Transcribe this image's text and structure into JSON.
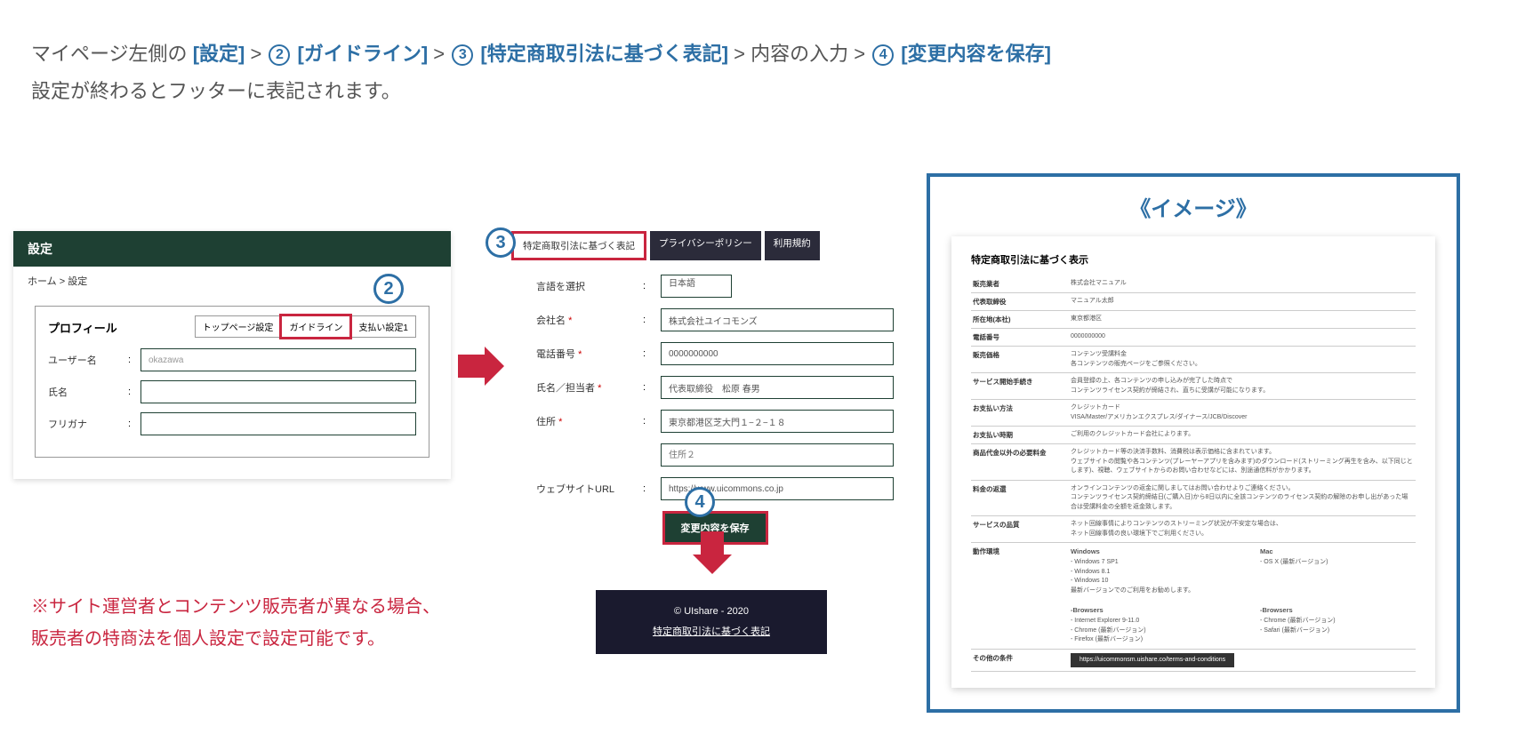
{
  "instruction": {
    "prefix": "マイページ左側の ",
    "step1": "[設定]",
    "gt1": " > ",
    "num2": "②",
    "step2": " [ガイドライン]",
    "gt2": " > ",
    "num3": "③",
    "step3": " [特定商取引法に基づく表記]",
    "gt3": " > 内容の入力 > ",
    "num4": "④",
    "step4": " [変更内容を保存]",
    "line2": "設定が終わるとフッターに表記されます。"
  },
  "panel1": {
    "header": "設定",
    "breadcrumb": "ホーム > 設定",
    "profile_title": "プロフィール",
    "tabs": {
      "t1": "トップページ設定",
      "t2": "ガイドライン",
      "t3": "支払い設定1"
    },
    "rows": {
      "user_label": "ユーザー名",
      "user_val": "okazawa",
      "name_label": "氏名",
      "furigana_label": "フリガナ"
    }
  },
  "panel2": {
    "tabs": {
      "t1": "特定商取引法に基づく表記",
      "t2": "プライバシーポリシー",
      "t3": "利用規約"
    },
    "lang_label": "言語を選択",
    "lang_val": "日本語",
    "company_label": "会社名 ",
    "company_val": "株式会社ユイコモンズ",
    "tel_label": "電話番号 ",
    "tel_val": "0000000000",
    "person_label": "氏名／担当者 ",
    "person_val": "代表取締役　松原 春男",
    "addr_label": "住所 ",
    "addr_val": "東京都港区芝大門１−２−１８",
    "addr2_ph": "住所２",
    "url_label": "ウェブサイトURL",
    "url_val": "https://www.uicommons.co.jp",
    "save": "変更内容を保存"
  },
  "footer": {
    "copy": "© UIshare - 2020",
    "link": "特定商取引法に基づく表記"
  },
  "note": {
    "l1": "※サイト運営者とコンテンツ販売者が異なる場合、",
    "l2": "販売者の特商法を個人設定で設定可能です。"
  },
  "preview": {
    "title": "《イメージ》",
    "doc_title": "特定商取引法に基づく表示",
    "rows": [
      {
        "k": "販売業者",
        "v": "株式会社マニュアル"
      },
      {
        "k": "代表取締役",
        "v": "マニュアル太郎"
      },
      {
        "k": "所在地(本社)",
        "v": "東京都港区"
      },
      {
        "k": "電話番号",
        "v": "0000000000"
      },
      {
        "k": "販売価格",
        "v": "コンテンツ受講料金\n各コンテンツの販売ページをご参照ください。"
      },
      {
        "k": "サービス開始手続き",
        "v": "会員登録の上、各コンテンツの申し込みが完了した時点で\nコンテンツライセンス契約が締結され、直ちに受講が可能になります。"
      },
      {
        "k": "お支払い方法",
        "v": "クレジットカード\nVISA/Master/アメリカンエクスプレス/ダイナース/JCB/Discover"
      },
      {
        "k": "お支払い時期",
        "v": "ご利用のクレジットカード会社によります。"
      },
      {
        "k": "商品代金以外の必要料金",
        "v": "クレジットカード等の決済手数料、消費税は表示価格に含まれています。\nウェブサイトの閲覧や各コンテンツ(プレーヤーアプリを含みます)のダウンロード(ストリーミング再生を含み、以下同じとします)、視聴、ウェブサイトからのお問い合わせなどには、別途通信料がかかります。"
      },
      {
        "k": "料金の返還",
        "v": "オンラインコンテンツの返金に関しましてはお問い合わせよりご連絡ください。\nコンテンツライセンス契約締結日(ご購入日)から8日以内に全該コンテンツのライセンス契約の解除のお申し出があった場合は受講料金の全額を返金致します。"
      },
      {
        "k": "サービスの品質",
        "v": "ネット回線事情によりコンテンツのストリーミング状況が不安定な場合は、\nネット回線事情の良い環境下でご利用ください。"
      }
    ],
    "env": {
      "k": "動作環境",
      "win_h": "Windows",
      "win_l1": "- Windows 7 SP1",
      "win_l2": "- Windows 8.1",
      "win_l3": "- Windows 10",
      "win_l4": "最新バージョンでのご利用をお勧めします。",
      "mac_h": "Mac",
      "mac_l1": "- OS X (最新バージョン)",
      "br_h": "-Browsers",
      "br_l1": "- Internet Explorer 9-11.0",
      "br_l2": "- Chrome (最新バージョン)",
      "br_l3": "- Firefox (最新バージョン)",
      "br2_l1": "- Chrome (最新バージョン)",
      "br2_l2": "- Safari (最新バージョン)"
    },
    "other_k": "その他の条件",
    "other_url": "https://uicommonsm.uishare.co/terms-and-conditions"
  }
}
